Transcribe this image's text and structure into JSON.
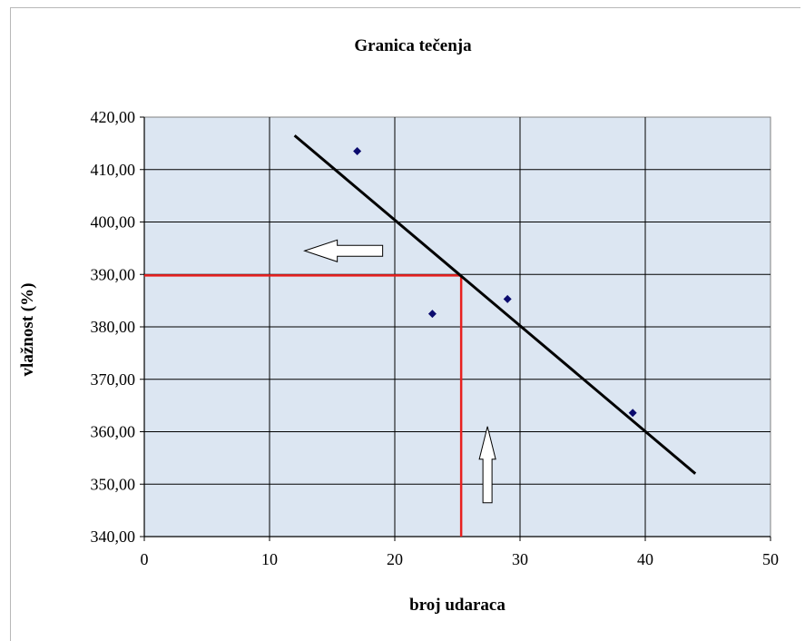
{
  "chart_data": {
    "type": "scatter",
    "title": "Granica tečenja",
    "xlabel": "broj udaraca",
    "ylabel": "vlažnost  (%)",
    "xlim": [
      0,
      50
    ],
    "ylim": [
      340,
      420
    ],
    "x_ticks": [
      "0",
      "10",
      "20",
      "30",
      "40",
      "50"
    ],
    "y_ticks": [
      "340,00",
      "350,00",
      "360,00",
      "370,00",
      "380,00",
      "390,00",
      "400,00",
      "410,00",
      "420,00"
    ],
    "grid": true,
    "legend": "none",
    "series": [
      {
        "points": [
          {
            "x": 17,
            "y": 413.5
          },
          {
            "x": 23,
            "y": 382.5
          },
          {
            "x": 29,
            "y": 385.3
          },
          {
            "x": 39,
            "y": 363.6
          }
        ]
      }
    ],
    "trendline": {
      "x": [
        12,
        44
      ],
      "y": [
        416.5,
        352
      ]
    },
    "reference_lines": {
      "x": 25.3,
      "y": 389.8
    },
    "annotations": {
      "left_arrow": {
        "x": 12.8,
        "y": 394.5,
        "direction": "left"
      },
      "up_arrow": {
        "x": 27.4,
        "y": 361,
        "direction": "up"
      }
    },
    "colors": {
      "plot_background": "#dce6f2",
      "grid": "#000000",
      "points": "#0b0b6e",
      "trendline": "#000000",
      "reference": "#e8201f"
    }
  }
}
